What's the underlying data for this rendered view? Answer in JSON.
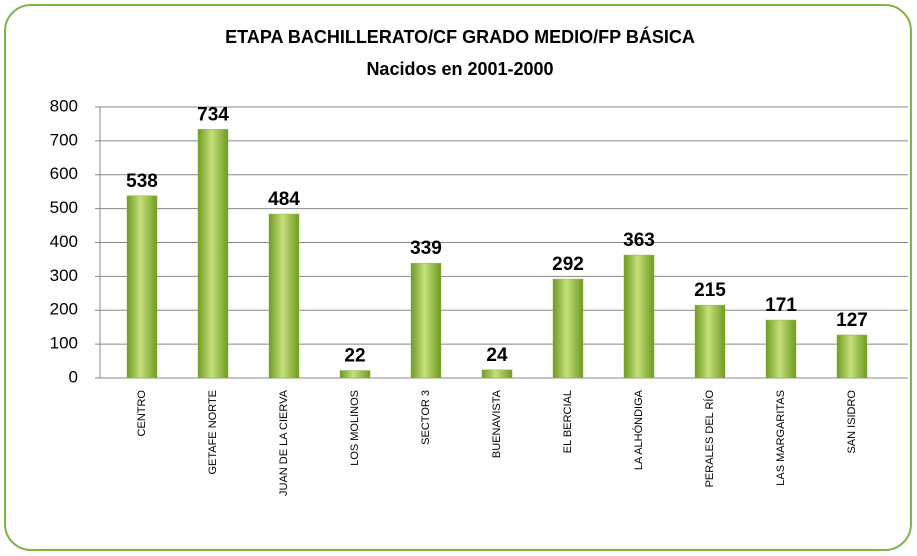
{
  "chart_data": {
    "type": "bar",
    "title": "ETAPA BACHILLERATO/CF GRADO MEDIO/FP BÁSICA",
    "subtitle": "Nacidos en 2001-2000",
    "categories": [
      "CENTRO",
      "GETAFE NORTE",
      "JUAN DE LA CIERVA",
      "LOS MOLINOS",
      "SECTOR 3",
      "BUENAVISTA",
      "EL BERCIAL",
      "LA ALHÓNDIGA",
      "PERALES DEL RÍO",
      "LAS MARGARITAS",
      "SAN ISIDRO"
    ],
    "values": [
      538,
      734,
      484,
      22,
      339,
      24,
      292,
      363,
      215,
      171,
      127
    ],
    "color": "#8cb83c",
    "ylim": [
      0,
      800
    ],
    "yticks": [
      0,
      100,
      200,
      300,
      400,
      500,
      600,
      700,
      800
    ],
    "grid": true
  }
}
